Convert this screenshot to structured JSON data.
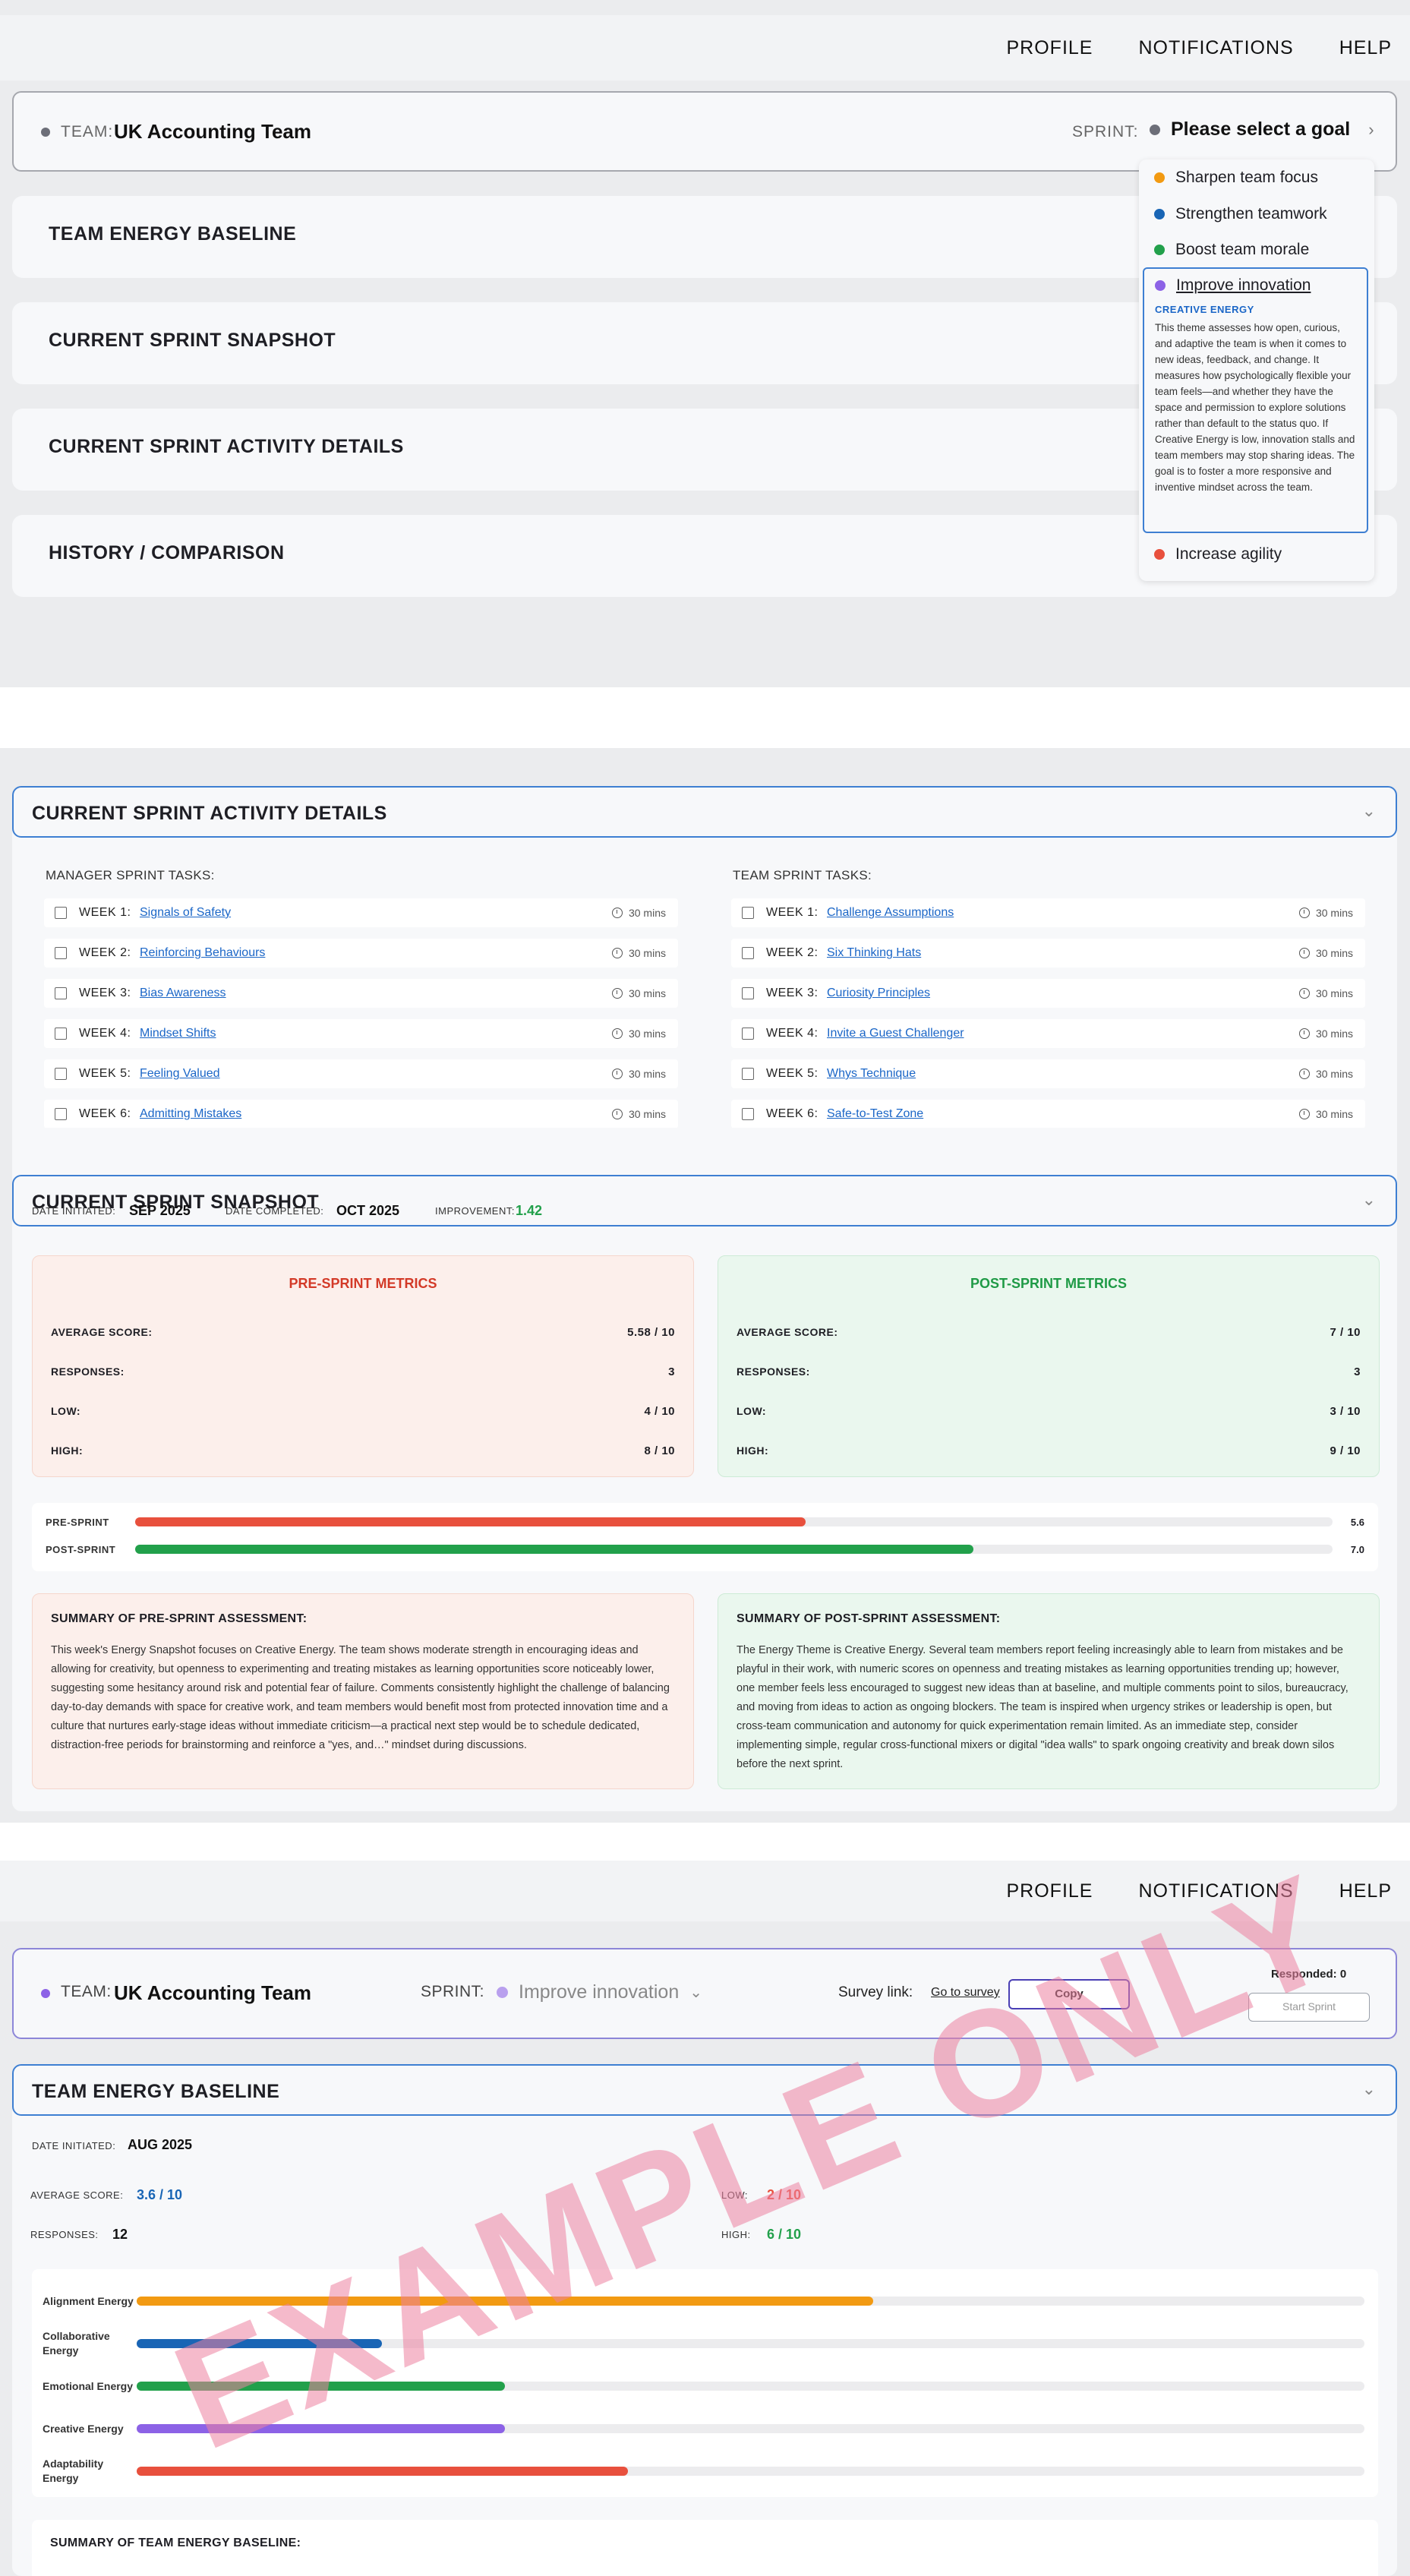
{
  "nav": {
    "profile": "PROFILE",
    "notifications": "NOTIFICATIONS",
    "help": "HELP"
  },
  "colors": {
    "orange": "#f29a12",
    "blue": "#1965b5",
    "green": "#22a04b",
    "purple": "#8c62e6",
    "red": "#e8503d",
    "gray": "#6c6e78"
  },
  "top": {
    "team_label": "TEAM:",
    "team_name": "UK Accounting Team",
    "sprint_label": "SPRINT:",
    "sprint_placeholder": "Please select a goal",
    "sections": [
      "TEAM ENERGY BASELINE",
      "CURRENT SPRINT SNAPSHOT",
      "CURRENT SPRINT ACTIVITY DETAILS",
      "HISTORY / COMPARISON"
    ],
    "goals": [
      {
        "label": "Sharpen team focus",
        "color": "#f29a12"
      },
      {
        "label": "Strengthen teamwork",
        "color": "#1965b5"
      },
      {
        "label": "Boost team morale",
        "color": "#22a04b"
      },
      {
        "label": "Improve innovation",
        "color": "#8c62e6"
      },
      {
        "label": "Increase agility",
        "color": "#e8503d"
      }
    ],
    "tooltip": {
      "caption": "CREATIVE ENERGY",
      "text": "This theme assesses how open, curious, and adaptive the team is when it comes to new ideas, feedback, and change. It measures how psychologically flexible your team feels—and whether they have the space and permission to explore solutions rather than default to the status quo. If Creative Energy is low, innovation stalls and team members may stop sharing ideas. The goal is to foster a more responsive and inventive mindset across the team."
    }
  },
  "activity": {
    "title": "CURRENT SPRINT ACTIVITY DETAILS",
    "manager_title": "MANAGER SPRINT TASKS:",
    "team_title": "TEAM SPRINT TASKS:",
    "manager_tasks": [
      {
        "week": "WEEK 1:",
        "name": "Signals of Safety",
        "duration": "30 mins"
      },
      {
        "week": "WEEK 2:",
        "name": "Reinforcing Behaviours",
        "duration": "30 mins"
      },
      {
        "week": "WEEK 3:",
        "name": "Bias Awareness",
        "duration": "30 mins"
      },
      {
        "week": "WEEK 4:",
        "name": "Mindset Shifts",
        "duration": "30 mins"
      },
      {
        "week": "WEEK 5:",
        "name": "Feeling Valued",
        "duration": "30 mins"
      },
      {
        "week": "WEEK 6:",
        "name": "Admitting Mistakes",
        "duration": "30 mins"
      }
    ],
    "team_tasks": [
      {
        "week": "WEEK 1:",
        "name": "Challenge Assumptions",
        "duration": "30 mins"
      },
      {
        "week": "WEEK 2:",
        "name": "Six Thinking Hats",
        "duration": "30 mins"
      },
      {
        "week": "WEEK 3:",
        "name": "Curiosity Principles",
        "duration": "30 mins"
      },
      {
        "week": "WEEK 4:",
        "name": "Invite a Guest Challenger",
        "duration": "30 mins"
      },
      {
        "week": "WEEK 5:",
        "name": "Whys Technique",
        "duration": "30 mins"
      },
      {
        "week": "WEEK 6:",
        "name": "Safe-to-Test Zone",
        "duration": "30 mins"
      }
    ]
  },
  "snapshot": {
    "title": "CURRENT SPRINT SNAPSHOT",
    "date_initiated_label": "DATE INITIATED:",
    "date_initiated": "SEP 2025",
    "date_completed_label": "DATE COMPLETED:",
    "date_completed": "OCT 2025",
    "improvement_label": "IMPROVEMENT:",
    "improvement": "1.42",
    "pre": {
      "title": "PRE-SPRINT METRICS",
      "rows": [
        {
          "label": "AVERAGE SCORE:",
          "value": "5.58 / 10"
        },
        {
          "label": "RESPONSES:",
          "value": "3"
        },
        {
          "label": "LOW:",
          "value": "4 / 10"
        },
        {
          "label": "HIGH:",
          "value": "8 / 10"
        }
      ]
    },
    "post": {
      "title": "POST-SPRINT METRICS",
      "rows": [
        {
          "label": "AVERAGE SCORE:",
          "value": "7 / 10"
        },
        {
          "label": "RESPONSES:",
          "value": "3"
        },
        {
          "label": "LOW:",
          "value": "3 / 10"
        },
        {
          "label": "HIGH:",
          "value": "9 / 10"
        }
      ]
    },
    "bars": [
      {
        "label": "PRE-SPRINT",
        "value": 5.6,
        "display": "5.6",
        "color": "#e8503d"
      },
      {
        "label": "POST-SPRINT",
        "value": 7.0,
        "display": "7.0",
        "color": "#22a04b"
      }
    ],
    "bar_max": 10,
    "pre_summary_title": "SUMMARY OF PRE-SPRINT ASSESSMENT:",
    "pre_summary": "This week's Energy Snapshot focuses on Creative Energy. The team shows moderate strength in encouraging ideas and allowing for creativity, but openness to experimenting and treating mistakes as learning opportunities score noticeably lower, suggesting some hesitancy around risk and potential fear of failure. Comments consistently highlight the challenge of balancing day-to-day demands with space for creative work, and team members would benefit most from protected innovation time and a culture that nurtures early-stage ideas without immediate criticism—a practical next step would be to schedule dedicated, distraction-free periods for brainstorming and reinforce a \"yes, and…\" mindset during discussions.",
    "post_summary_title": "SUMMARY OF POST-SPRINT ASSESSMENT:",
    "post_summary": "The Energy Theme is Creative Energy. Several team members report feeling increasingly able to learn from mistakes and be playful in their work, with numeric scores on openness and treating mistakes as learning opportunities trending up; however, one member feels less encouraged to suggest new ideas than at baseline, and multiple comments point to silos, bureaucracy, and moving from ideas to action as ongoing blockers. The team is inspired when urgency strikes or leadership is open, but cross-team communication and autonomy for quick experimentation remain limited. As an immediate step, consider implementing simple, regular cross-functional mixers or digital \"idea walls\" to spark ongoing creativity and break down silos before the next sprint."
  },
  "bottom": {
    "team_label": "TEAM:",
    "team_name": "UK Accounting Team",
    "sprint_label": "SPRINT:",
    "sprint_value": "Improve innovation",
    "survey_label": "Survey link:",
    "survey_link": "Go to survey",
    "copy": "Copy",
    "responded": "Responded: 0",
    "start": "Start Sprint",
    "baseline_title": "TEAM ENERGY BASELINE",
    "date_initiated_label": "DATE INITIATED:",
    "date_initiated": "AUG 2025",
    "avg_label": "AVERAGE SCORE:",
    "avg": "3.6 / 10",
    "responses_label": "RESPONSES:",
    "responses": "12",
    "low_label": "LOW:",
    "low": "2 / 10",
    "high_label": "HIGH:",
    "high": "6 / 10",
    "energies": [
      {
        "label": "Alignment Energy",
        "value": 0.6,
        "color": "#f29a12"
      },
      {
        "label": "Collaborative Energy",
        "value": 0.2,
        "color": "#1965b5"
      },
      {
        "label": "Emotional Energy",
        "value": 0.3,
        "color": "#22a04b"
      },
      {
        "label": "Creative Energy",
        "value": 0.3,
        "color": "#8c62e6"
      },
      {
        "label": "Adaptability Energy",
        "value": 0.4,
        "color": "#e8503d"
      }
    ],
    "summary_title": "SUMMARY OF TEAM ENERGY BASELINE:",
    "watermark": "EXAMPLE ONLY"
  }
}
